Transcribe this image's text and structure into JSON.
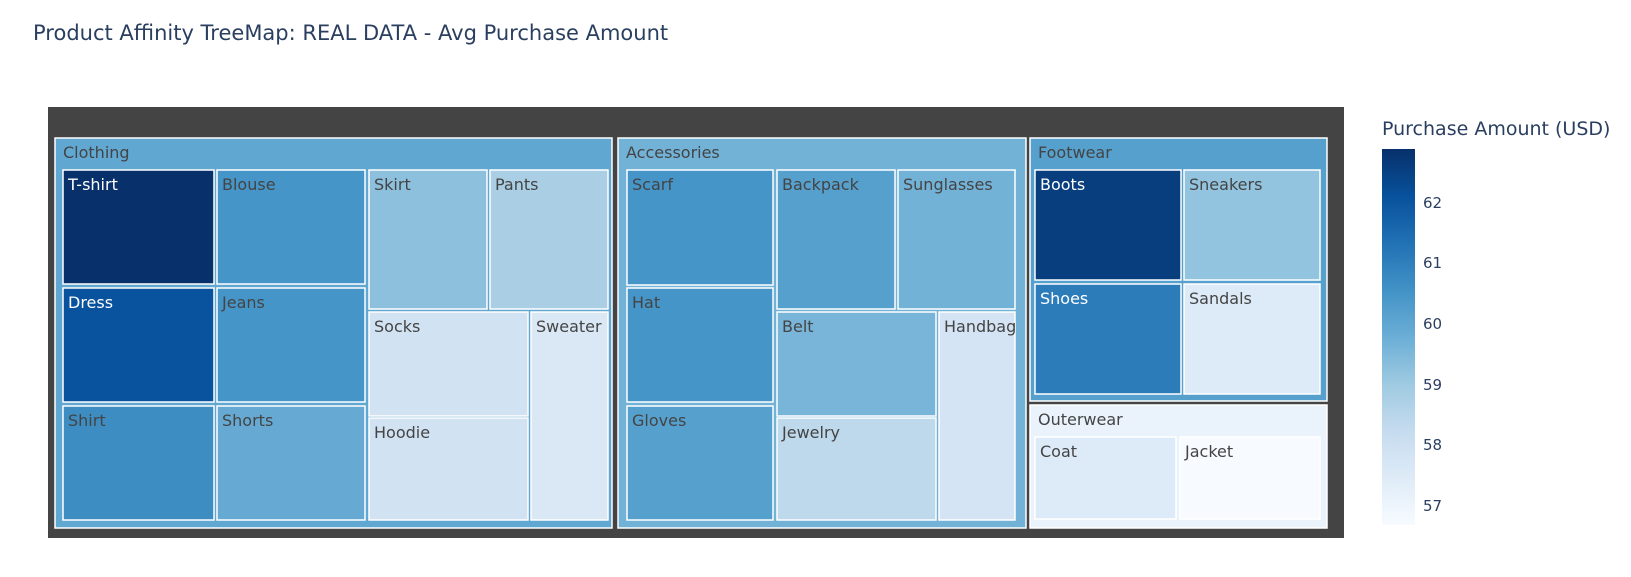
{
  "title": "Product Affinity TreeMap: REAL DATA - Avg Purchase Amount",
  "colorbar": {
    "title": "Purchase Amount (USD)",
    "ticks": [
      "62",
      "61",
      "60",
      "59",
      "58",
      "57"
    ],
    "tick_values": [
      62,
      61,
      60,
      59,
      58,
      57
    ],
    "min": 56.7,
    "max": 62.9
  },
  "chart_data": {
    "type": "treemap",
    "colorscale": "Blues",
    "categories": [
      {
        "name": "Clothing",
        "value": 60.0,
        "items": [
          {
            "name": "T-shirt",
            "value": 62.9
          },
          {
            "name": "Blouse",
            "value": 60.5
          },
          {
            "name": "Skirt",
            "value": 59.3
          },
          {
            "name": "Pants",
            "value": 58.8
          },
          {
            "name": "Dress",
            "value": 62.1
          },
          {
            "name": "Jeans",
            "value": 60.5
          },
          {
            "name": "Socks",
            "value": 57.9
          },
          {
            "name": "Sweater",
            "value": 57.6
          },
          {
            "name": "Shirt",
            "value": 60.7
          },
          {
            "name": "Shorts",
            "value": 59.9
          },
          {
            "name": "Hoodie",
            "value": 57.9
          }
        ]
      },
      {
        "name": "Accessories",
        "value": 59.7,
        "items": [
          {
            "name": "Scarf",
            "value": 60.5
          },
          {
            "name": "Backpack",
            "value": 60.2
          },
          {
            "name": "Sunglasses",
            "value": 59.7
          },
          {
            "name": "Hat",
            "value": 60.5
          },
          {
            "name": "Belt",
            "value": 59.6
          },
          {
            "name": "Handbag",
            "value": 57.8
          },
          {
            "name": "Gloves",
            "value": 60.2
          },
          {
            "name": "Jewelry",
            "value": 58.4
          }
        ]
      },
      {
        "name": "Footwear",
        "value": 60.2,
        "items": [
          {
            "name": "Boots",
            "value": 62.6
          },
          {
            "name": "Sneakers",
            "value": 59.2
          },
          {
            "name": "Shoes",
            "value": 61.1
          },
          {
            "name": "Sandals",
            "value": 57.5
          }
        ]
      },
      {
        "name": "Outerwear",
        "value": 57.1,
        "items": [
          {
            "name": "Coat",
            "value": 57.5
          },
          {
            "name": "Jacket",
            "value": 56.7
          }
        ]
      }
    ]
  }
}
